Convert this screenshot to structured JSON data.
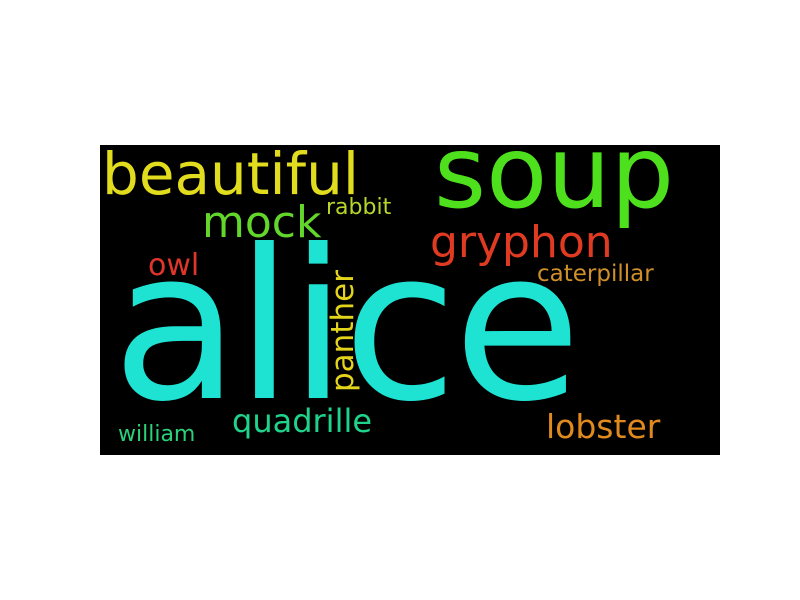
{
  "wordcloud": {
    "background": "#000000",
    "words": {
      "alice": {
        "text": "alice",
        "color": "#1ee3d3"
      },
      "soup": {
        "text": "soup",
        "color": "#4fe01d"
      },
      "beautiful": {
        "text": "beautiful",
        "color": "#e1dc1d"
      },
      "mock": {
        "text": "mock",
        "color": "#62d62a"
      },
      "rabbit": {
        "text": "rabbit",
        "color": "#b8d62a"
      },
      "gryphon": {
        "text": "gryphon",
        "color": "#e03a22"
      },
      "owl": {
        "text": "owl",
        "color": "#e0352a"
      },
      "caterpillar": {
        "text": "caterpillar",
        "color": "#cf8f2a"
      },
      "panther": {
        "text": "panther",
        "color": "#e2d31b"
      },
      "quadrille": {
        "text": "quadrille",
        "color": "#1fd38a"
      },
      "william": {
        "text": "william",
        "color": "#2bd17a"
      },
      "lobster": {
        "text": "lobster",
        "color": "#e08a1e"
      }
    }
  }
}
